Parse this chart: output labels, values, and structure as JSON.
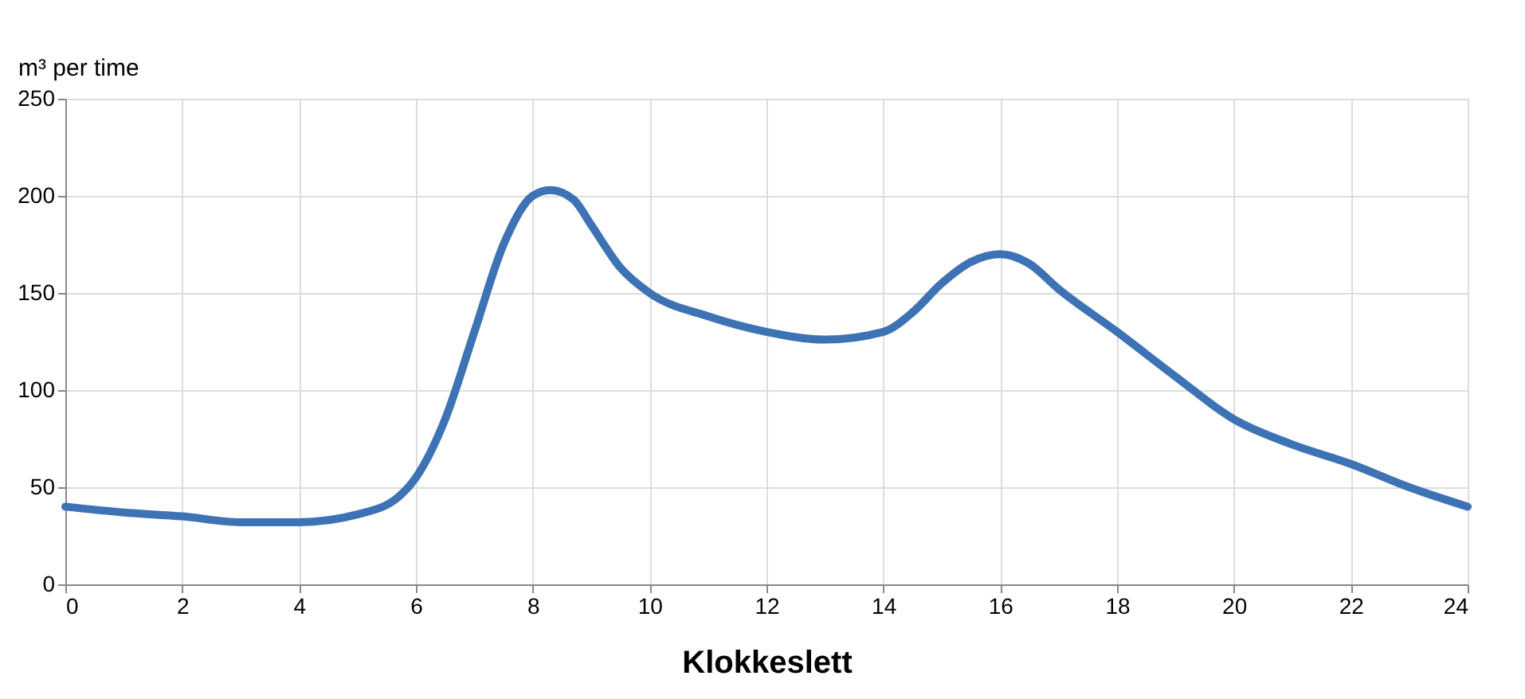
{
  "chart_data": {
    "type": "line",
    "xlabel": "Klokkeslett",
    "ylabel": "m³ per time",
    "x": [
      0,
      1,
      2,
      3,
      4,
      5,
      5.7,
      6,
      6.5,
      7,
      7.5,
      8,
      8.3,
      8.7,
      9,
      9.5,
      10,
      11,
      12,
      13,
      14,
      14.5,
      15,
      15.5,
      16,
      16.5,
      17,
      18,
      19,
      20,
      21,
      22,
      23,
      24
    ],
    "series": [
      {
        "color": "#3d72b4",
        "values": [
          40,
          37,
          35,
          32,
          32,
          36,
          45,
          55,
          85,
          130,
          175,
          200,
          203,
          198,
          185,
          163,
          150,
          138,
          130,
          126,
          130,
          140,
          155,
          166,
          170,
          165,
          152,
          130,
          107,
          85,
          72,
          62,
          50,
          40
        ]
      }
    ],
    "xlim": [
      0,
      24
    ],
    "xticks": [
      0,
      2,
      4,
      6,
      8,
      10,
      12,
      14,
      16,
      18,
      20,
      22,
      24
    ],
    "ylim": [
      0,
      250
    ],
    "yticks": [
      0,
      50,
      100,
      150,
      200,
      250
    ],
    "grid": true,
    "marker": "none",
    "line_style": "solid"
  }
}
